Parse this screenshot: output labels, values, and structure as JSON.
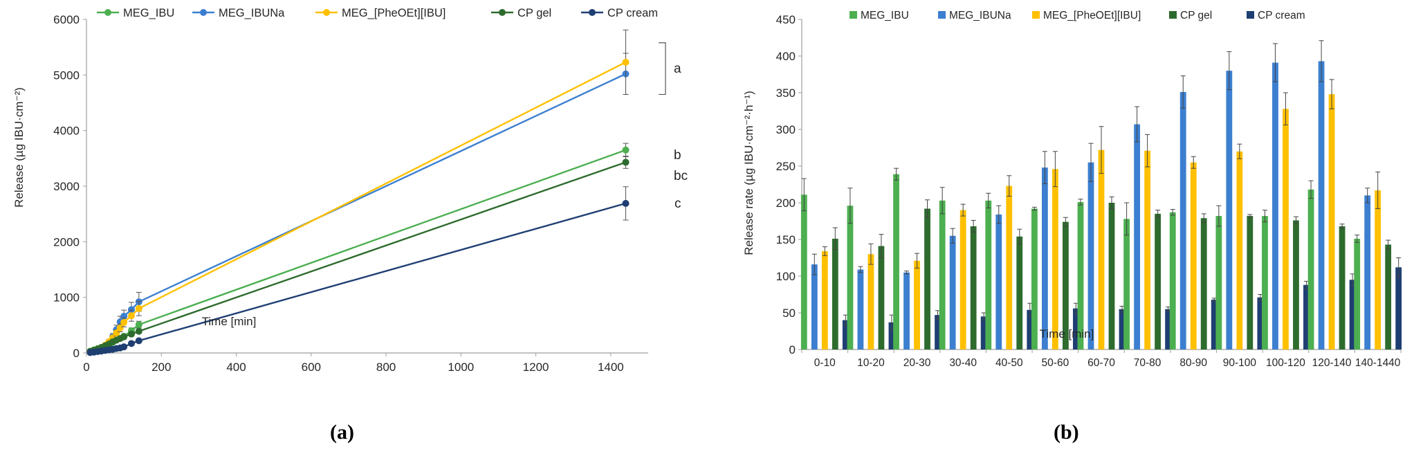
{
  "panels": {
    "a_label": "(a)",
    "b_label": "(b)"
  },
  "chart_data": [
    {
      "type": "line",
      "xlabel": "Time [min]",
      "ylabel": "Release (µg IBU·cm⁻²)",
      "xlim": [
        0,
        1500
      ],
      "ylim": [
        0,
        6000
      ],
      "xticks": [
        0,
        200,
        400,
        600,
        800,
        1000,
        1200,
        1400
      ],
      "yticks": [
        0,
        1000,
        2000,
        3000,
        4000,
        5000,
        6000
      ],
      "legend_position": "top",
      "grid": false,
      "series": [
        {
          "name": "MEG_IBU",
          "color": "#4CAF50",
          "x": [
            10,
            20,
            30,
            40,
            50,
            60,
            70,
            80,
            90,
            100,
            120,
            140,
            1440
          ],
          "y": [
            30,
            55,
            80,
            100,
            130,
            160,
            190,
            230,
            260,
            300,
            400,
            510,
            3650
          ],
          "err": [
            10,
            12,
            15,
            18,
            20,
            25,
            28,
            30,
            35,
            40,
            50,
            60,
            120
          ]
        },
        {
          "name": "MEG_IBUNa",
          "color": "#3C7FD0",
          "x": [
            10,
            20,
            30,
            40,
            50,
            60,
            70,
            80,
            90,
            100,
            120,
            140,
            1440
          ],
          "y": [
            20,
            40,
            60,
            90,
            130,
            200,
            290,
            420,
            560,
            660,
            780,
            920,
            5020
          ],
          "err": [
            10,
            12,
            15,
            20,
            30,
            40,
            60,
            80,
            100,
            110,
            130,
            170,
            370
          ]
        },
        {
          "name": "MEG_[PheOEt][IBU]",
          "color": "#FFC000",
          "x": [
            10,
            20,
            30,
            40,
            50,
            60,
            70,
            80,
            90,
            100,
            120,
            140,
            1440
          ],
          "y": [
            25,
            45,
            70,
            100,
            140,
            200,
            270,
            360,
            450,
            550,
            670,
            800,
            5230
          ],
          "err": [
            10,
            12,
            15,
            20,
            25,
            35,
            45,
            55,
            70,
            80,
            100,
            130,
            580
          ]
        },
        {
          "name": "CP gel",
          "color": "#2E6B2E",
          "x": [
            10,
            20,
            30,
            40,
            50,
            60,
            70,
            80,
            90,
            100,
            120,
            140,
            1440
          ],
          "y": [
            30,
            50,
            70,
            100,
            130,
            160,
            200,
            230,
            260,
            290,
            340,
            390,
            3430
          ],
          "err": [
            8,
            10,
            12,
            15,
            18,
            20,
            22,
            25,
            28,
            30,
            35,
            40,
            110
          ]
        },
        {
          "name": "CP cream",
          "color": "#1F3F73",
          "x": [
            10,
            20,
            30,
            40,
            50,
            60,
            70,
            80,
            90,
            100,
            120,
            140,
            1440
          ],
          "y": [
            8,
            15,
            25,
            35,
            45,
            55,
            65,
            80,
            90,
            110,
            170,
            220,
            2690
          ],
          "err": [
            4,
            5,
            6,
            7,
            8,
            9,
            10,
            12,
            14,
            16,
            20,
            25,
            300
          ]
        }
      ],
      "annotations": [
        {
          "text": "a",
          "y": 5130
        },
        {
          "text": "b",
          "y": 3570
        },
        {
          "text": "bc",
          "y": 3200
        },
        {
          "text": "c",
          "y": 2700
        }
      ]
    },
    {
      "type": "bar",
      "xlabel": "Time [min]",
      "ylabel": "Release rate (µg IBU·cm⁻²·h⁻¹)",
      "ylim": [
        0,
        450
      ],
      "yticks": [
        0,
        50,
        100,
        150,
        200,
        250,
        300,
        350,
        400,
        450
      ],
      "legend_position": "top",
      "grid": false,
      "categories": [
        "0-10",
        "10-20",
        "20-30",
        "30-40",
        "40-50",
        "50-60",
        "60-70",
        "70-80",
        "80-90",
        "90-100",
        "100-120",
        "120-140",
        "140-1440"
      ],
      "series": [
        {
          "name": "MEG_IBU",
          "color": "#4CAF50",
          "values": [
            211,
            196,
            239,
            203,
            203,
            192,
            201,
            178,
            187,
            182,
            182,
            218,
            151
          ],
          "err": [
            22,
            24,
            8,
            18,
            10,
            2,
            4,
            22,
            4,
            14,
            8,
            12,
            5
          ]
        },
        {
          "name": "MEG_IBUNa",
          "color": "#3C7FD0",
          "values": [
            116,
            109,
            105,
            155,
            184,
            248,
            255,
            307,
            351,
            380,
            391,
            393,
            210
          ],
          "err": [
            14,
            4,
            2,
            10,
            12,
            22,
            26,
            24,
            22,
            26,
            26,
            28,
            10
          ]
        },
        {
          "name": "MEG_[PheOEt][IBU]",
          "color": "#FFC000",
          "values": [
            134,
            130,
            121,
            190,
            223,
            246,
            272,
            271,
            255,
            270,
            328,
            348,
            217
          ],
          "err": [
            6,
            14,
            10,
            8,
            14,
            24,
            32,
            22,
            8,
            10,
            22,
            20,
            25
          ]
        },
        {
          "name": "CP gel",
          "color": "#2E6B2E",
          "values": [
            151,
            141,
            192,
            168,
            154,
            174,
            200,
            185,
            179,
            182,
            176,
            168,
            143
          ],
          "err": [
            15,
            16,
            12,
            8,
            10,
            6,
            8,
            5,
            6,
            2,
            5,
            3,
            6
          ]
        },
        {
          "name": "CP cream",
          "color": "#1F3F73",
          "values": [
            40,
            37,
            47,
            45,
            54,
            56,
            55,
            55,
            68,
            71,
            88,
            95,
            112
          ],
          "err": [
            7,
            10,
            6,
            5,
            9,
            7,
            4,
            3,
            2,
            4,
            5,
            8,
            13
          ]
        }
      ]
    }
  ]
}
